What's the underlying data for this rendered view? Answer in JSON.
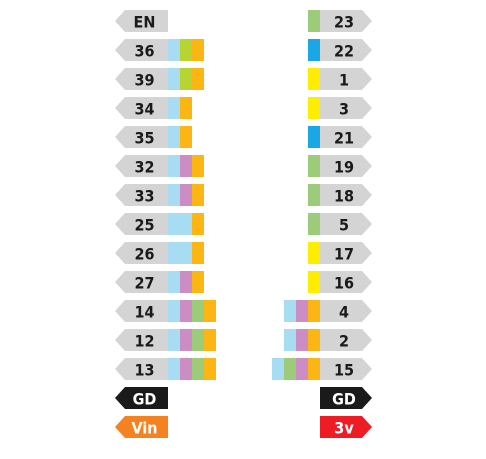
{
  "pinout": {
    "colors": {
      "pin": "#d4d4d4",
      "gnd": "#1a1a1a",
      "vin": "#f58220",
      "v3": "#ee1c25",
      "light_blue": "#a8dcf3",
      "yellow_green": "#b7d433",
      "orange": "#fbb614",
      "purple": "#cc8cc4",
      "green": "#9ccc7a",
      "blue": "#1aa7e6",
      "yellow": "#ffed00"
    },
    "left": [
      {
        "label": "EN",
        "tags": []
      },
      {
        "label": "36",
        "tags": [
          "light_blue",
          "yellow_green",
          "orange"
        ]
      },
      {
        "label": "39",
        "tags": [
          "light_blue",
          "yellow_green",
          "orange"
        ]
      },
      {
        "label": "34",
        "tags": [
          "light_blue",
          "orange"
        ]
      },
      {
        "label": "35",
        "tags": [
          "light_blue",
          "orange"
        ]
      },
      {
        "label": "32",
        "tags": [
          "light_blue",
          "purple",
          "orange"
        ]
      },
      {
        "label": "33",
        "tags": [
          "light_blue",
          "purple",
          "orange"
        ]
      },
      {
        "label": "25",
        "tags": [
          "light_blue",
          "light_blue",
          "orange"
        ]
      },
      {
        "label": "26",
        "tags": [
          "light_blue",
          "light_blue",
          "orange"
        ]
      },
      {
        "label": "27",
        "tags": [
          "light_blue",
          "purple",
          "orange"
        ]
      },
      {
        "label": "14",
        "tags": [
          "light_blue",
          "purple",
          "green",
          "orange"
        ]
      },
      {
        "label": "12",
        "tags": [
          "light_blue",
          "purple",
          "green",
          "orange"
        ]
      },
      {
        "label": "13",
        "tags": [
          "light_blue",
          "purple",
          "green",
          "orange"
        ]
      },
      {
        "label": "GD",
        "kind": "gnd",
        "tags": []
      },
      {
        "label": "Vin",
        "kind": "vin",
        "tags": []
      }
    ],
    "right": [
      {
        "label": "23",
        "tags": [
          "green"
        ]
      },
      {
        "label": "22",
        "tags": [
          "blue"
        ]
      },
      {
        "label": "1",
        "tags": [
          "yellow"
        ]
      },
      {
        "label": "3",
        "tags": [
          "yellow"
        ]
      },
      {
        "label": "21",
        "tags": [
          "blue"
        ]
      },
      {
        "label": "19",
        "tags": [
          "green"
        ]
      },
      {
        "label": "18",
        "tags": [
          "green"
        ]
      },
      {
        "label": "5",
        "tags": [
          "green"
        ]
      },
      {
        "label": "17",
        "tags": [
          "yellow"
        ]
      },
      {
        "label": "16",
        "tags": [
          "yellow"
        ]
      },
      {
        "label": "4",
        "tags": [
          "light_blue",
          "purple",
          "orange"
        ]
      },
      {
        "label": "2",
        "tags": [
          "light_blue",
          "purple",
          "orange"
        ]
      },
      {
        "label": "15",
        "tags": [
          "light_blue",
          "green",
          "purple",
          "orange"
        ]
      },
      {
        "label": "GD",
        "kind": "gnd",
        "tags": []
      },
      {
        "label": "3v",
        "kind": "v3",
        "tags": []
      }
    ]
  }
}
